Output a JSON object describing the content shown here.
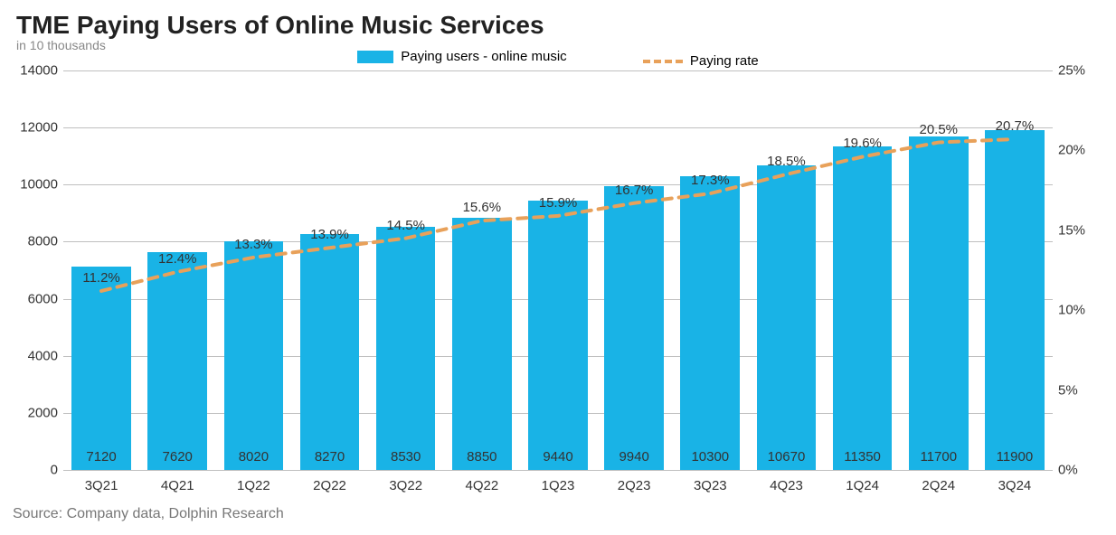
{
  "chart": {
    "type": "bar+line",
    "title": "TME Paying Users of Online Music Services",
    "subtitle": "in 10  thousands",
    "source": "Source: Company data, Dolphin Research",
    "background_color": "#ffffff",
    "grid_color": "#bfbfbf",
    "title_fontsize": 28,
    "subtitle_fontsize": 14,
    "label_fontsize": 15,
    "font_family": "Segoe UI, Arial, sans-serif",
    "legend": {
      "bar_label": "Paying users - online music",
      "line_label": "Paying rate",
      "position": "top-center"
    },
    "categories": [
      "3Q21",
      "4Q21",
      "1Q22",
      "2Q22",
      "3Q22",
      "4Q22",
      "1Q23",
      "2Q23",
      "3Q23",
      "4Q23",
      "1Q24",
      "2Q24",
      "3Q24"
    ],
    "bars": {
      "values": [
        7120,
        7620,
        8020,
        8270,
        8530,
        8850,
        9440,
        9940,
        10300,
        10670,
        11350,
        11700,
        11900
      ],
      "color": "#19b3e6",
      "width_ratio": 0.78,
      "label_color": "#333333"
    },
    "line": {
      "values_pct": [
        11.2,
        12.4,
        13.3,
        13.9,
        14.5,
        15.6,
        15.9,
        16.7,
        17.3,
        18.5,
        19.6,
        20.5,
        20.7
      ],
      "color": "#e8a15a",
      "dash": "10,8",
      "stroke_width": 4,
      "label_suffix": "%"
    },
    "y_left": {
      "min": 0,
      "max": 14000,
      "step": 2000
    },
    "y_right": {
      "min": 0,
      "max": 25,
      "step": 5,
      "suffix": "%"
    }
  }
}
